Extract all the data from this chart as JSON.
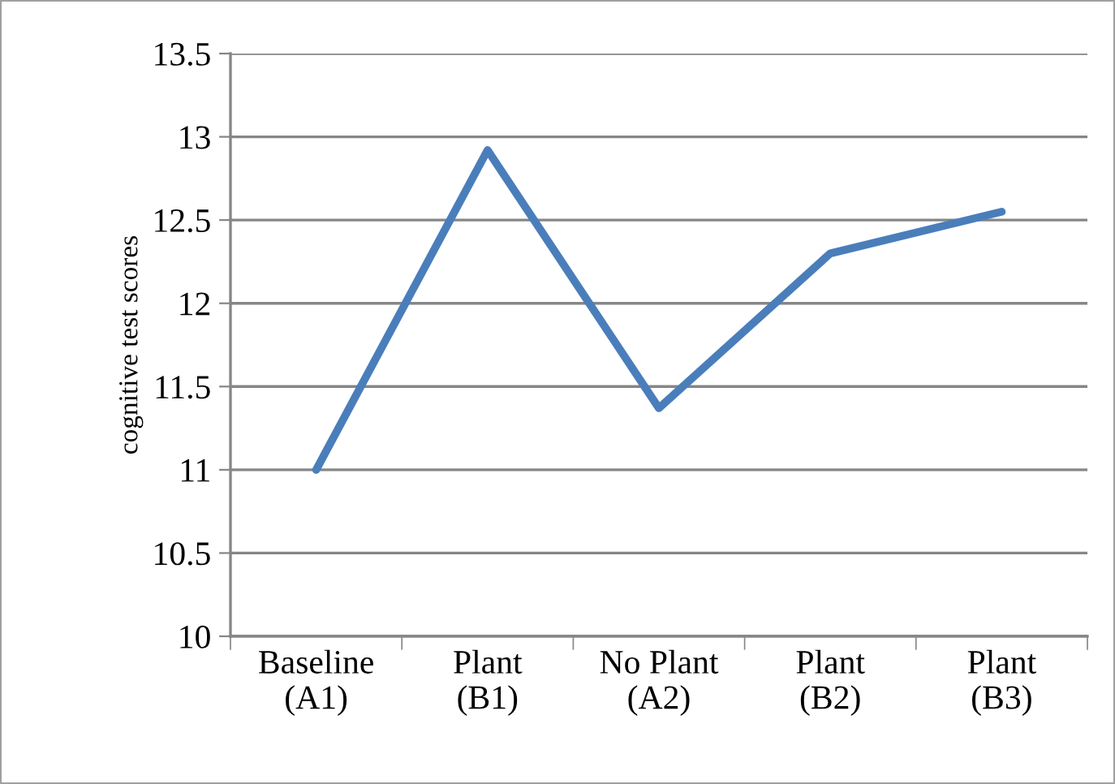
{
  "chart_data": {
    "type": "line",
    "ylabel": "cognitive test scores",
    "categories": [
      "Baseline\n(A1)",
      "Plant\n(B1)",
      "No Plant\n(A2)",
      "Plant\n(B2)",
      "Plant\n(B3)"
    ],
    "series": [
      {
        "color": "#4a7ebb",
        "values": [
          11,
          12.92,
          11.37,
          12.3,
          12.55
        ]
      }
    ],
    "ylim": [
      10,
      13.5
    ],
    "yticks": [
      10,
      10.5,
      11,
      11.5,
      12,
      12.5,
      13,
      13.5
    ],
    "grid": "y",
    "marker": "none",
    "line_style": "solid"
  }
}
